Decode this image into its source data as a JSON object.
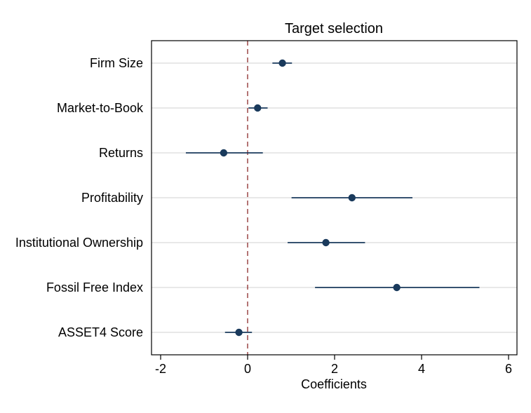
{
  "chart_data": {
    "type": "scatter",
    "subtype": "coefficient-plot-with-confidence-intervals",
    "title": "Target selection",
    "xlabel": "Coefficients",
    "ylabel": "",
    "xlim": [
      -2.2,
      6.2
    ],
    "xticks": [
      -2,
      0,
      2,
      4,
      6
    ],
    "grid": "horizontal",
    "reference_line": {
      "x": 0,
      "style": "dashed",
      "color": "#8B2A2A"
    },
    "colors": {
      "marker": "#1a3a5c",
      "ci_line": "#1a3a5c",
      "gridline": "#d9d9d9"
    },
    "categories": [
      "Firm Size",
      "Market-to-Book",
      "Returns",
      "Profitability",
      "Institutional Ownership",
      "Fossil Free Index",
      "ASSET4 Score"
    ],
    "estimates": [
      0.8,
      0.23,
      -0.55,
      2.4,
      1.8,
      3.43,
      -0.2
    ],
    "ci_low": [
      0.57,
      0.02,
      -1.42,
      1.01,
      0.92,
      1.55,
      -0.52
    ],
    "ci_high": [
      1.02,
      0.46,
      0.35,
      3.79,
      2.7,
      5.33,
      0.1
    ]
  }
}
